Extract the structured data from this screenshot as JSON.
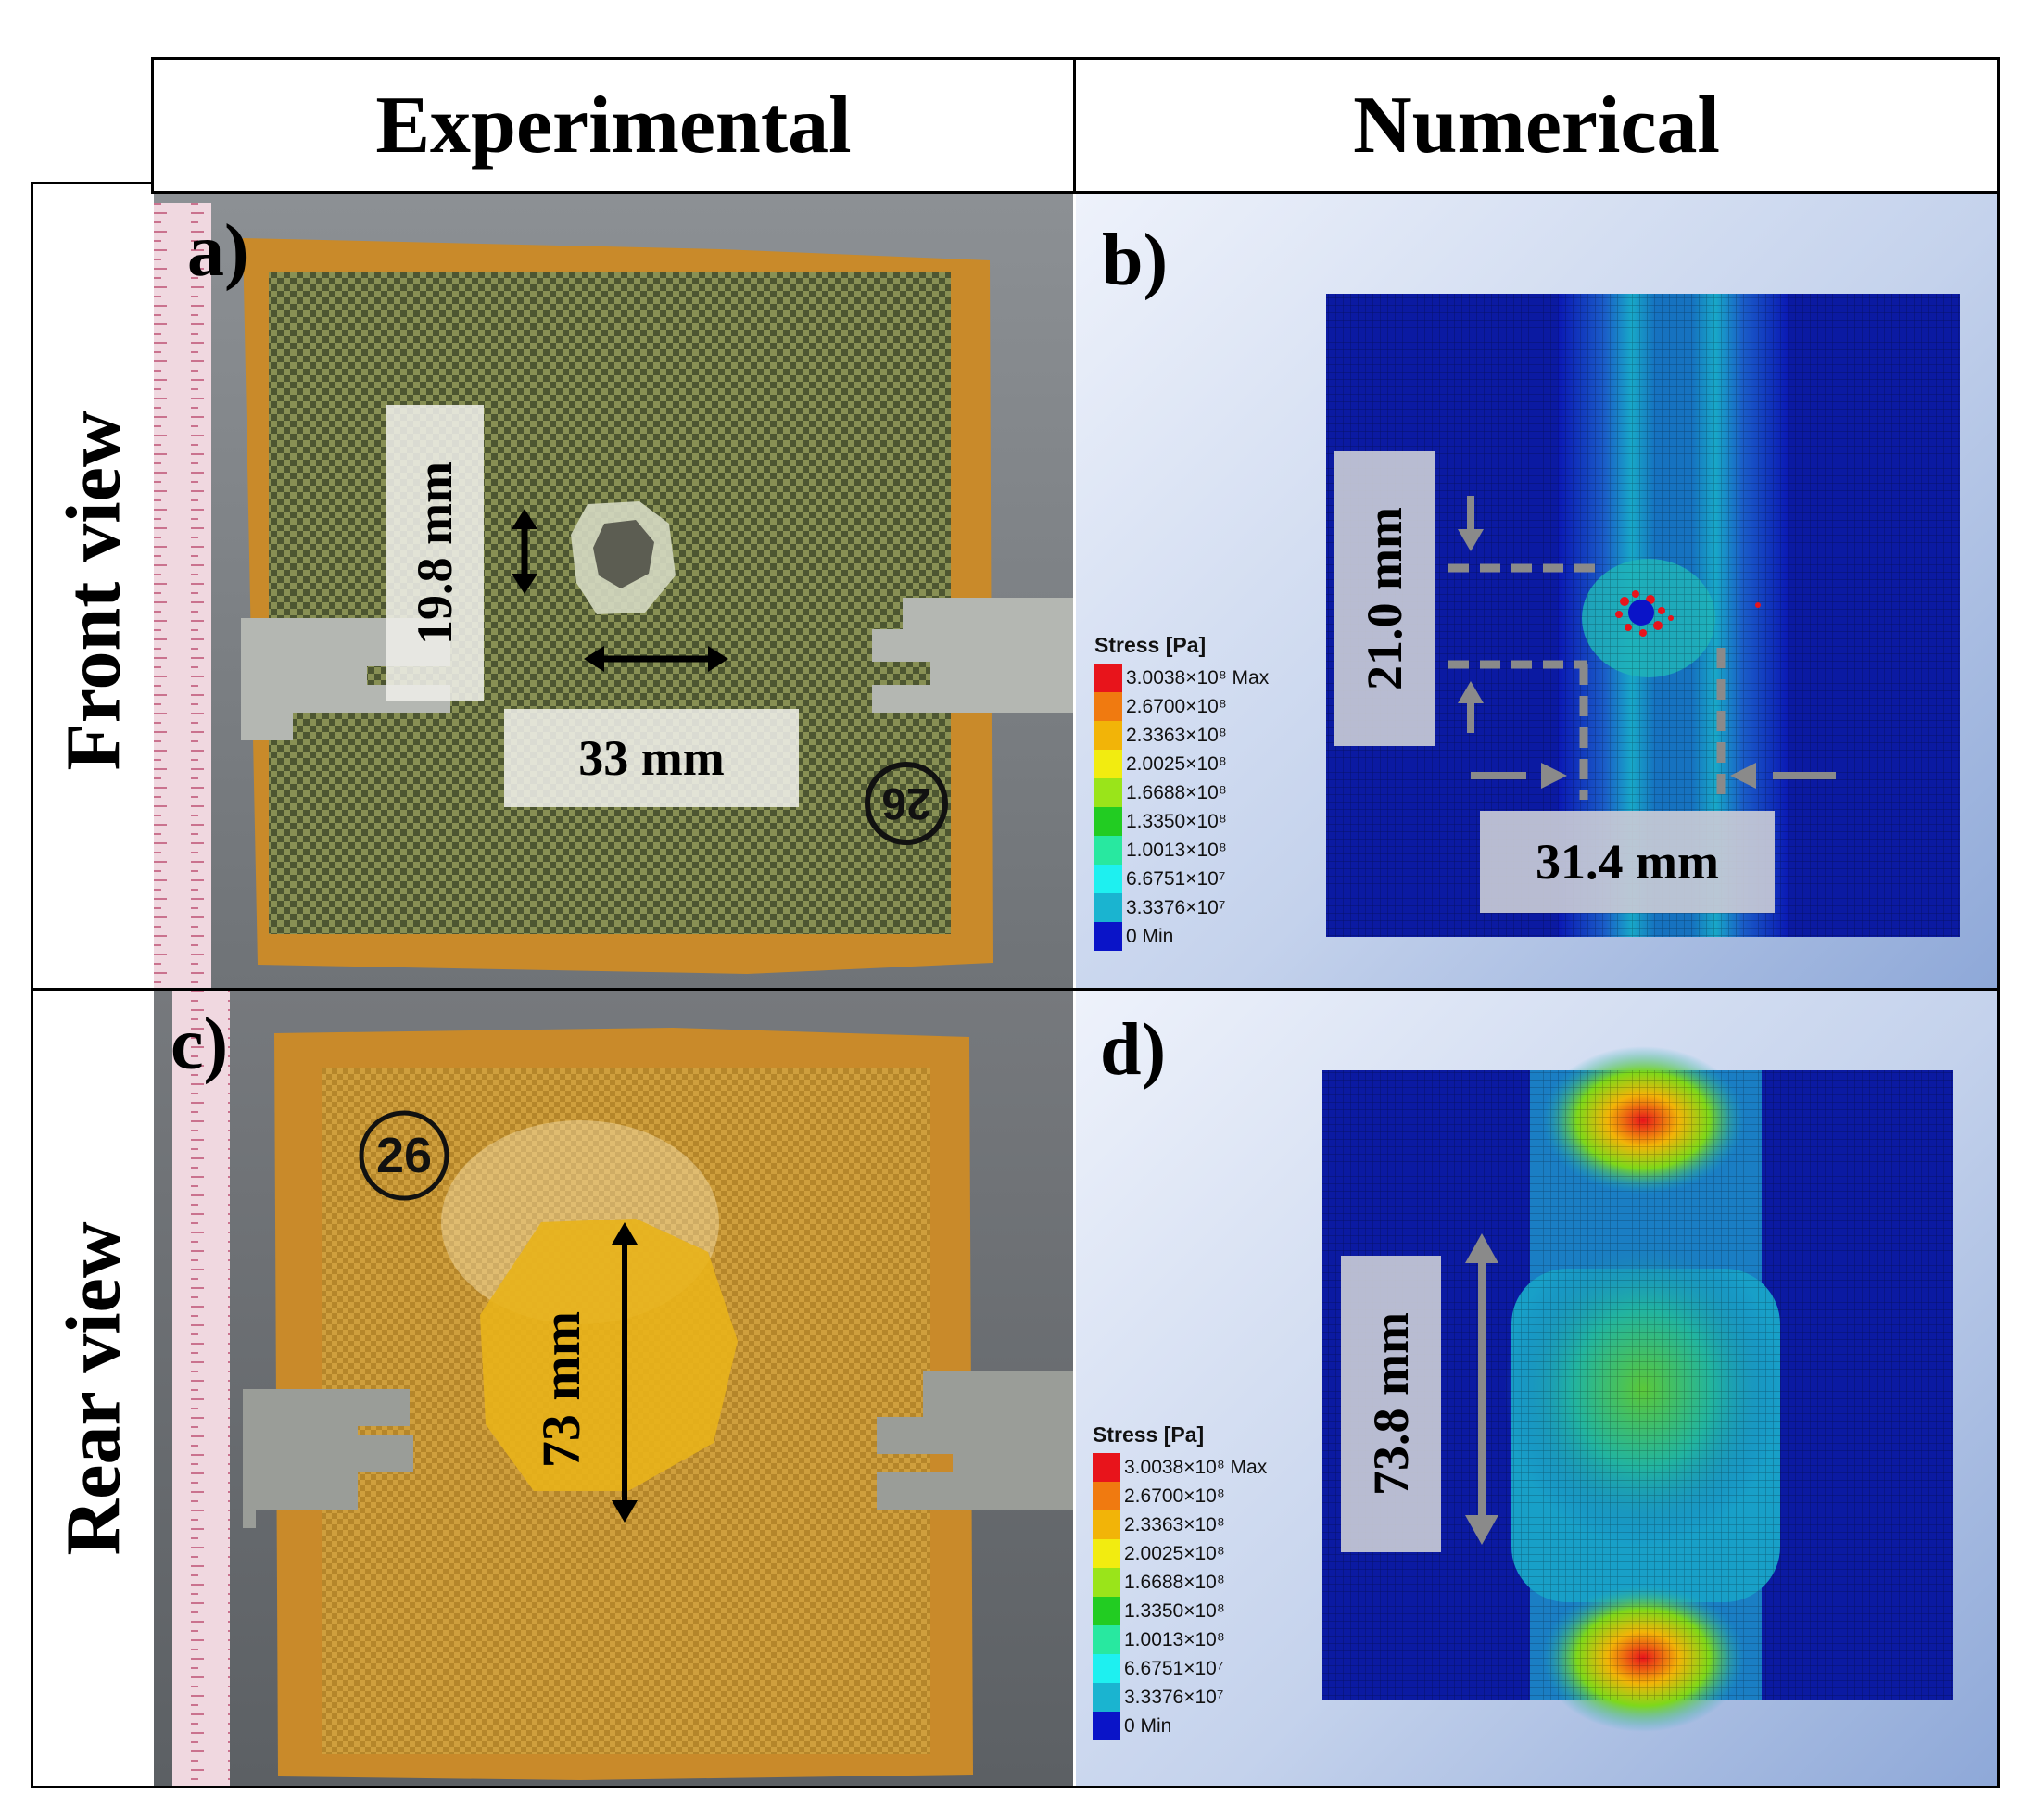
{
  "columns": {
    "experimental": "Experimental",
    "numerical": "Numerical"
  },
  "rows": {
    "front": "Front view",
    "rear": "Rear view"
  },
  "panels": {
    "a": {
      "label": "a)",
      "vertical_measure": "19.8 mm",
      "horizontal_measure": "33 mm",
      "specimen_mark": "26"
    },
    "b": {
      "label": "b)",
      "vertical_measure": "21.0 mm",
      "horizontal_measure": "31.4 mm"
    },
    "c": {
      "label": "c)",
      "vertical_measure": "73 mm",
      "specimen_mark": "26"
    },
    "d": {
      "label": "d)",
      "vertical_measure": "73.8 mm"
    }
  },
  "legend": {
    "title": "Stress [Pa]",
    "levels": [
      "3.0038×10⁸ Max",
      "2.6700×10⁸",
      "2.3363×10⁸",
      "2.0025×10⁸",
      "1.6688×10⁸",
      "1.3350×10⁸",
      "1.0013×10⁸",
      "6.6751×10⁷",
      "3.3376×10⁷",
      "0 Min"
    ],
    "colors": [
      "#e8141b",
      "#f07a10",
      "#f2b408",
      "#f2ec10",
      "#9ae41a",
      "#22cc22",
      "#28e8a0",
      "#1ef0f0",
      "#1ab4d0",
      "#0a14c8"
    ]
  }
}
